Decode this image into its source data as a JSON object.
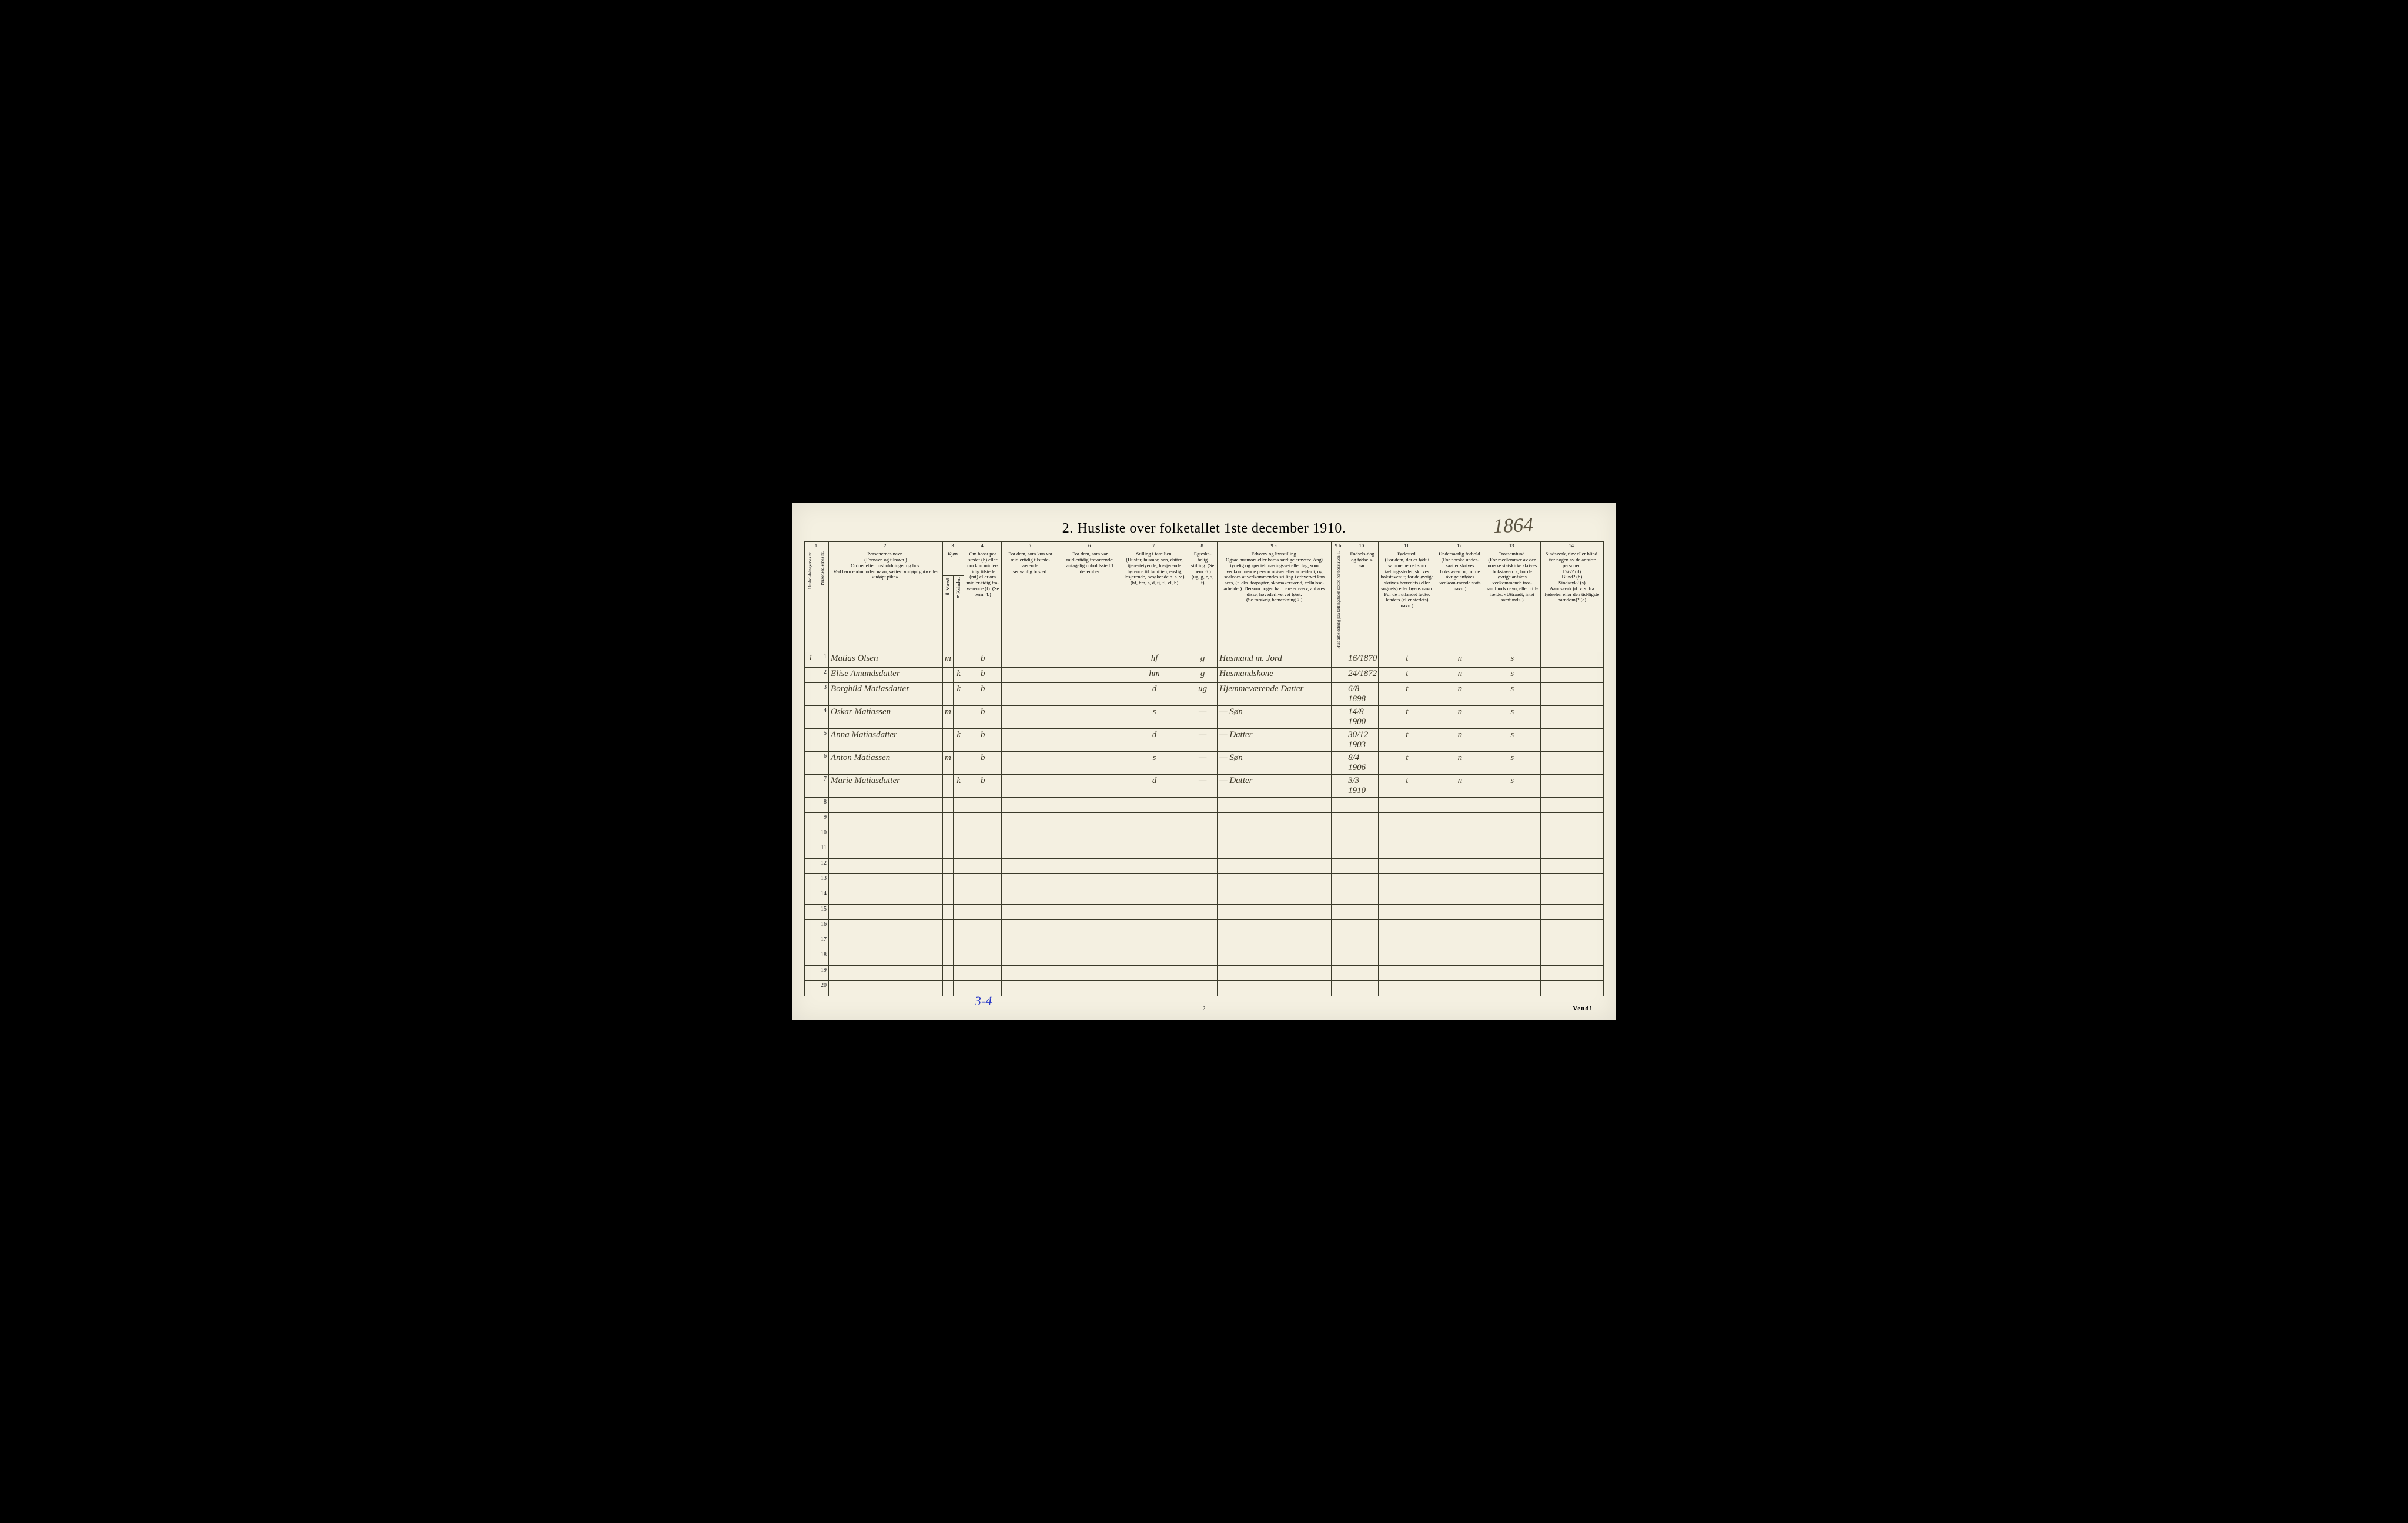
{
  "title": "2.   Husliste over folketallet 1ste december 1910.",
  "handwritten_year": "1864",
  "footer_note": "Vend!",
  "page_number": "2",
  "blue_annotation": "3-4",
  "colors": {
    "paper": "#f4f0e1",
    "ink": "#3a3a2a",
    "script": "#3b3626",
    "blue_pencil": "#2838c8"
  },
  "column_numbers": [
    "1.",
    "",
    "2.",
    "3.",
    "",
    "4.",
    "5.",
    "6.",
    "7.",
    "8.",
    "9 a.",
    "9 b.",
    "10.",
    "11.",
    "12.",
    "13.",
    "14."
  ],
  "headers": {
    "hh": "Husholdningernes nr.",
    "pn": "Personsedlernes nr.",
    "name": "Personernes navn.\n(Fornavn og tilnavn.)\nOrdnet efter husholdninger og hus.\nVed barn endnu uden navn, sættes: «udøpt gut» eller «udøpt pike».",
    "sex": "Kjøn.",
    "sex_m": "Mænd.",
    "sex_k": "Kvinder.",
    "sex_sub_m": "m.",
    "sex_sub_k": "k.",
    "residence": "Om bosat paa stedet (b) eller om kun midler-tidig tilstede (mt) eller om midler-tidig fra-værende (f). (Se bem. 4.)",
    "away": "For dem, som kun var midlertidig tilstede-værende:\nsedvanlig bosted.",
    "absent": "For dem, som var midlertidig fraværende:\nantagelig opholdssted 1 december.",
    "famrel": "Stilling i familien.\n(Husfar, husmor, søn, datter, tjenestetyende, lo-sjerende hørende til familien, enslig losjerende, besøkende o. s. v.)\n(hf, hm, s, d, tj, fl, el, b)",
    "marital": "Egteska-belig stilling. (Se bem. 6.)\n(ug, g, e, s, f)",
    "occupation": "Erhverv og livsstilling.\nOgsaa husmors eller barns særlige erhverv. Angi tydelig og specielt næringsvei eller fag, som vedkommende person utøver eller arbeider i, og saaledes at vedkommendes stilling i erhvervet kan sees, (f. eks. forpagter, skomakersvend, cellulose-arbeider). Dersom nogen har flere erhverv, anføres disse, hovederhvervet først.\n(Se forøvrig bemerkning 7.)",
    "col9b": "Hvis arbeidsledig paa tællingstiden sættes her bokstaven: l.",
    "birth": "Fødsels-dag og fødsels-aar.",
    "birthplace": "Fødested.\n(For dem, der er født i samme herred som tællingsstedet, skrives bokstaven: t; for de øvrige skrives herredets (eller sognets) eller byens navn. For de i utlandet fødte: landets (eller stedets) navn.)",
    "nationality": "Undersaatlig forhold.\n(For norske under-saatter skrives bokstaven: n; for de øvrige anføres vedkom-mende stats navn.)",
    "religion": "Trossamfund.\n(For medlemmer av den norske statskirke skrives bokstaven: s; for de øvrige anføres vedkommende tros-samfunds navn, eller i til-fælde: «Uttraadt, intet samfund».)",
    "disability": "Sindssvak, døv eller blind.\nVar nogen av de anførte personer:\nDøv? (d)\nBlind? (b)\nSindssyk? (s)\nAandssvak (d. v. s. fra fødselen eller den tid-ligste barndom)? (a)"
  },
  "rows": [
    {
      "hh": "1",
      "pn": "1",
      "name": "Matias Olsen",
      "sex_m": "m",
      "sex_k": "",
      "res": "b",
      "away": "",
      "absent": "",
      "famrel": "hf",
      "mar": "g",
      "occ": "Husmand m. Jord",
      "c9b": "",
      "birth": "16/1870",
      "bplace": "t",
      "nat": "n",
      "rel": "s",
      "dis": ""
    },
    {
      "hh": "",
      "pn": "2",
      "name": "Elise Amundsdatter",
      "sex_m": "",
      "sex_k": "k",
      "res": "b",
      "away": "",
      "absent": "",
      "famrel": "hm",
      "mar": "g",
      "occ": "Husmandskone",
      "c9b": "",
      "birth": "24/1872",
      "bplace": "t",
      "nat": "n",
      "rel": "s",
      "dis": ""
    },
    {
      "hh": "",
      "pn": "3",
      "name": "Borghild Matiasdatter",
      "sex_m": "",
      "sex_k": "k",
      "res": "b",
      "away": "",
      "absent": "",
      "famrel": "d",
      "mar": "ug",
      "occ": "Hjemmeværende Datter",
      "c9b": "",
      "birth": "6/8 1898",
      "bplace": "t",
      "nat": "n",
      "rel": "s",
      "dis": ""
    },
    {
      "hh": "",
      "pn": "4",
      "name": "Oskar Matiassen",
      "sex_m": "m",
      "sex_k": "",
      "res": "b",
      "away": "",
      "absent": "",
      "famrel": "s",
      "mar": "—",
      "occ": "—        Søn",
      "c9b": "",
      "birth": "14/8 1900",
      "bplace": "t",
      "nat": "n",
      "rel": "s",
      "dis": ""
    },
    {
      "hh": "",
      "pn": "5",
      "name": "Anna Matiasdatter",
      "sex_m": "",
      "sex_k": "k",
      "res": "b",
      "away": "",
      "absent": "",
      "famrel": "d",
      "mar": "—",
      "occ": "—        Datter",
      "c9b": "",
      "birth": "30/12 1903",
      "bplace": "t",
      "nat": "n",
      "rel": "s",
      "dis": ""
    },
    {
      "hh": "",
      "pn": "6",
      "name": "Anton Matiassen",
      "sex_m": "m",
      "sex_k": "",
      "res": "b",
      "away": "",
      "absent": "",
      "famrel": "s",
      "mar": "—",
      "occ": "—        Søn",
      "c9b": "",
      "birth": "8/4 1906",
      "bplace": "t",
      "nat": "n",
      "rel": "s",
      "dis": ""
    },
    {
      "hh": "",
      "pn": "7",
      "name": "Marie Matiasdatter",
      "sex_m": "",
      "sex_k": "k",
      "res": "b",
      "away": "",
      "absent": "",
      "famrel": "d",
      "mar": "—",
      "occ": "—        Datter",
      "c9b": "",
      "birth": "3/3 1910",
      "bplace": "t",
      "nat": "n",
      "rel": "s",
      "dis": ""
    }
  ],
  "blank_rows": 13,
  "row_labels": [
    "1",
    "2",
    "3",
    "4",
    "5",
    "6",
    "7",
    "8",
    "9",
    "10",
    "11",
    "12",
    "13",
    "14",
    "15",
    "16",
    "17",
    "18",
    "19",
    "20"
  ]
}
